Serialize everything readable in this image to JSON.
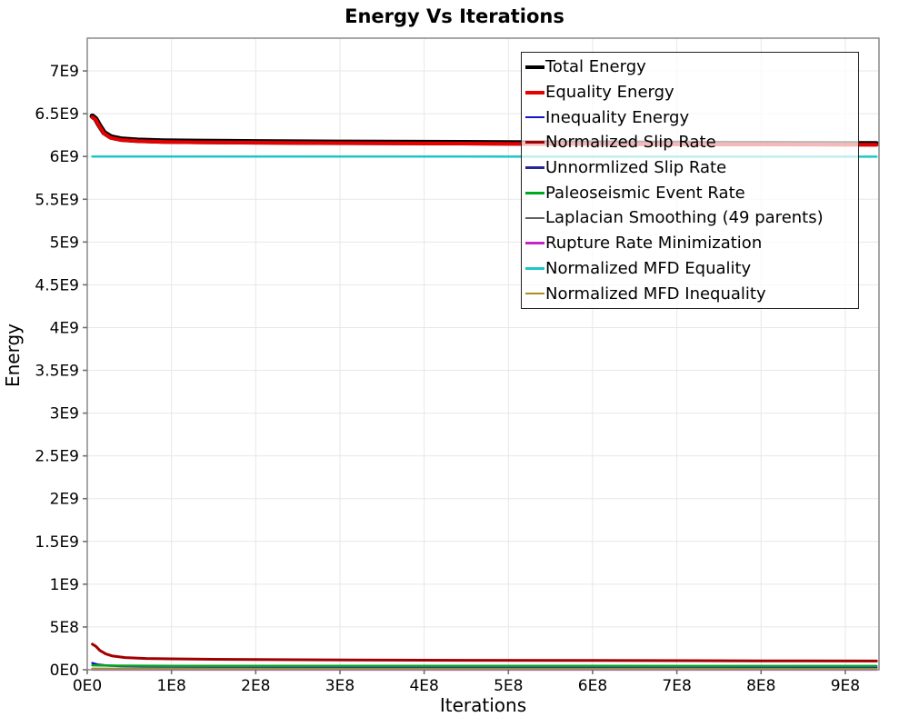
{
  "title": "Energy Vs Iterations",
  "chart_data": {
    "type": "line",
    "title": "Energy Vs Iterations",
    "xlabel": "Iterations",
    "ylabel": "Energy",
    "grid": true,
    "legend_position": "top-right-inside",
    "x_values_unit": 100000000,
    "y_values_unit": 1000000000,
    "xlim": [
      0,
      9.4
    ],
    "ylim": [
      0,
      7.383
    ],
    "x_tick_values": [
      0,
      1,
      2,
      3,
      4,
      5,
      6,
      7,
      8,
      9
    ],
    "x_tick_labels": [
      "0E0",
      "1E8",
      "2E8",
      "3E8",
      "4E8",
      "5E8",
      "6E8",
      "7E8",
      "8E8",
      "9E8"
    ],
    "y_tick_values": [
      0,
      0.5,
      1,
      1.5,
      2,
      2.5,
      3,
      3.5,
      4,
      4.5,
      5,
      5.5,
      6,
      6.5,
      7
    ],
    "y_tick_labels": [
      "0E0",
      "5E8",
      "1E9",
      "1.5E9",
      "2E9",
      "2.5E9",
      "3E9",
      "3.5E9",
      "4E9",
      "4.5E9",
      "5E9",
      "5.5E9",
      "6E9",
      "6.5E9",
      "7E9"
    ],
    "series": [
      {
        "name": "Total Energy",
        "color": "#000000",
        "width": 6,
        "points": [
          [
            0.06,
            6.47
          ],
          [
            0.1,
            6.44
          ],
          [
            0.14,
            6.368
          ],
          [
            0.2,
            6.278
          ],
          [
            0.28,
            6.228
          ],
          [
            0.4,
            6.203
          ],
          [
            0.6,
            6.189
          ],
          [
            0.9,
            6.181
          ],
          [
            1.3,
            6.176
          ],
          [
            2,
            6.171
          ],
          [
            3,
            6.166
          ],
          [
            4,
            6.162
          ],
          [
            5,
            6.159
          ],
          [
            6,
            6.156
          ],
          [
            7,
            6.153
          ],
          [
            8,
            6.151
          ],
          [
            9.37,
            6.148
          ]
        ]
      },
      {
        "name": "Equality Energy",
        "color": "#e60000",
        "width": 4,
        "points": [
          [
            0.06,
            6.46
          ],
          [
            0.1,
            6.43
          ],
          [
            0.14,
            6.358
          ],
          [
            0.2,
            6.268
          ],
          [
            0.28,
            6.218
          ],
          [
            0.4,
            6.193
          ],
          [
            0.6,
            6.179
          ],
          [
            0.9,
            6.171
          ],
          [
            1.3,
            6.166
          ],
          [
            2,
            6.161
          ],
          [
            3,
            6.156
          ],
          [
            4,
            6.152
          ],
          [
            5,
            6.149
          ],
          [
            6,
            6.146
          ],
          [
            7,
            6.143
          ],
          [
            8,
            6.141
          ],
          [
            9.37,
            6.138
          ]
        ]
      },
      {
        "name": "Inequality Energy",
        "color": "#1414cc",
        "width": 2.5,
        "points": [
          [
            0.06,
            0.078
          ],
          [
            0.12,
            0.062
          ],
          [
            0.22,
            0.05
          ],
          [
            0.4,
            0.042
          ],
          [
            0.8,
            0.038
          ],
          [
            1.5,
            0.035
          ],
          [
            3,
            0.033
          ],
          [
            6,
            0.031
          ],
          [
            9.37,
            0.03
          ]
        ]
      },
      {
        "name": "Normalized Slip Rate",
        "color": "#a00000",
        "width": 3,
        "points": [
          [
            0.06,
            0.3
          ],
          [
            0.1,
            0.275
          ],
          [
            0.15,
            0.225
          ],
          [
            0.22,
            0.185
          ],
          [
            0.3,
            0.16
          ],
          [
            0.45,
            0.142
          ],
          [
            0.7,
            0.132
          ],
          [
            1.0,
            0.127
          ],
          [
            1.5,
            0.122
          ],
          [
            2.5,
            0.117
          ],
          [
            4,
            0.112
          ],
          [
            6,
            0.108
          ],
          [
            8,
            0.104
          ],
          [
            9.37,
            0.102
          ]
        ]
      },
      {
        "name": "Unnormlized Slip Rate",
        "color": "#262699",
        "width": 2.5,
        "points": [
          [
            0.06,
            0.006
          ],
          [
            9.37,
            0.005
          ]
        ]
      },
      {
        "name": "Paleoseismic Event Rate",
        "color": "#00a81e",
        "width": 2.5,
        "points": [
          [
            0.06,
            0.052
          ],
          [
            0.3,
            0.048
          ],
          [
            1.0,
            0.046
          ],
          [
            3,
            0.045
          ],
          [
            6,
            0.0445
          ],
          [
            9.37,
            0.044
          ]
        ]
      },
      {
        "name": "Laplacian Smoothing (49 parents)",
        "color": "#606060",
        "width": 2.5,
        "points": [
          [
            0.06,
            0.003
          ],
          [
            9.37,
            0.003
          ]
        ]
      },
      {
        "name": "Rupture Rate Minimization",
        "color": "#c724c7",
        "width": 2.5,
        "points": [
          [
            0.06,
            0.0015
          ],
          [
            9.37,
            0.0015
          ]
        ]
      },
      {
        "name": "Normalized MFD Equality",
        "color": "#1ec7c7",
        "width": 2.5,
        "points": [
          [
            0.06,
            6.0
          ],
          [
            9.37,
            5.998
          ]
        ]
      },
      {
        "name": "Normalized MFD Inequality",
        "color": "#ab8b24",
        "width": 2.5,
        "points": [
          [
            0.06,
            0.012
          ],
          [
            9.37,
            0.01
          ]
        ]
      }
    ]
  },
  "colors": {
    "gridline": "#e7e7e7",
    "spine": "#909090",
    "tick": "#707070",
    "text": "#000000",
    "legend_border": "#222222"
  }
}
